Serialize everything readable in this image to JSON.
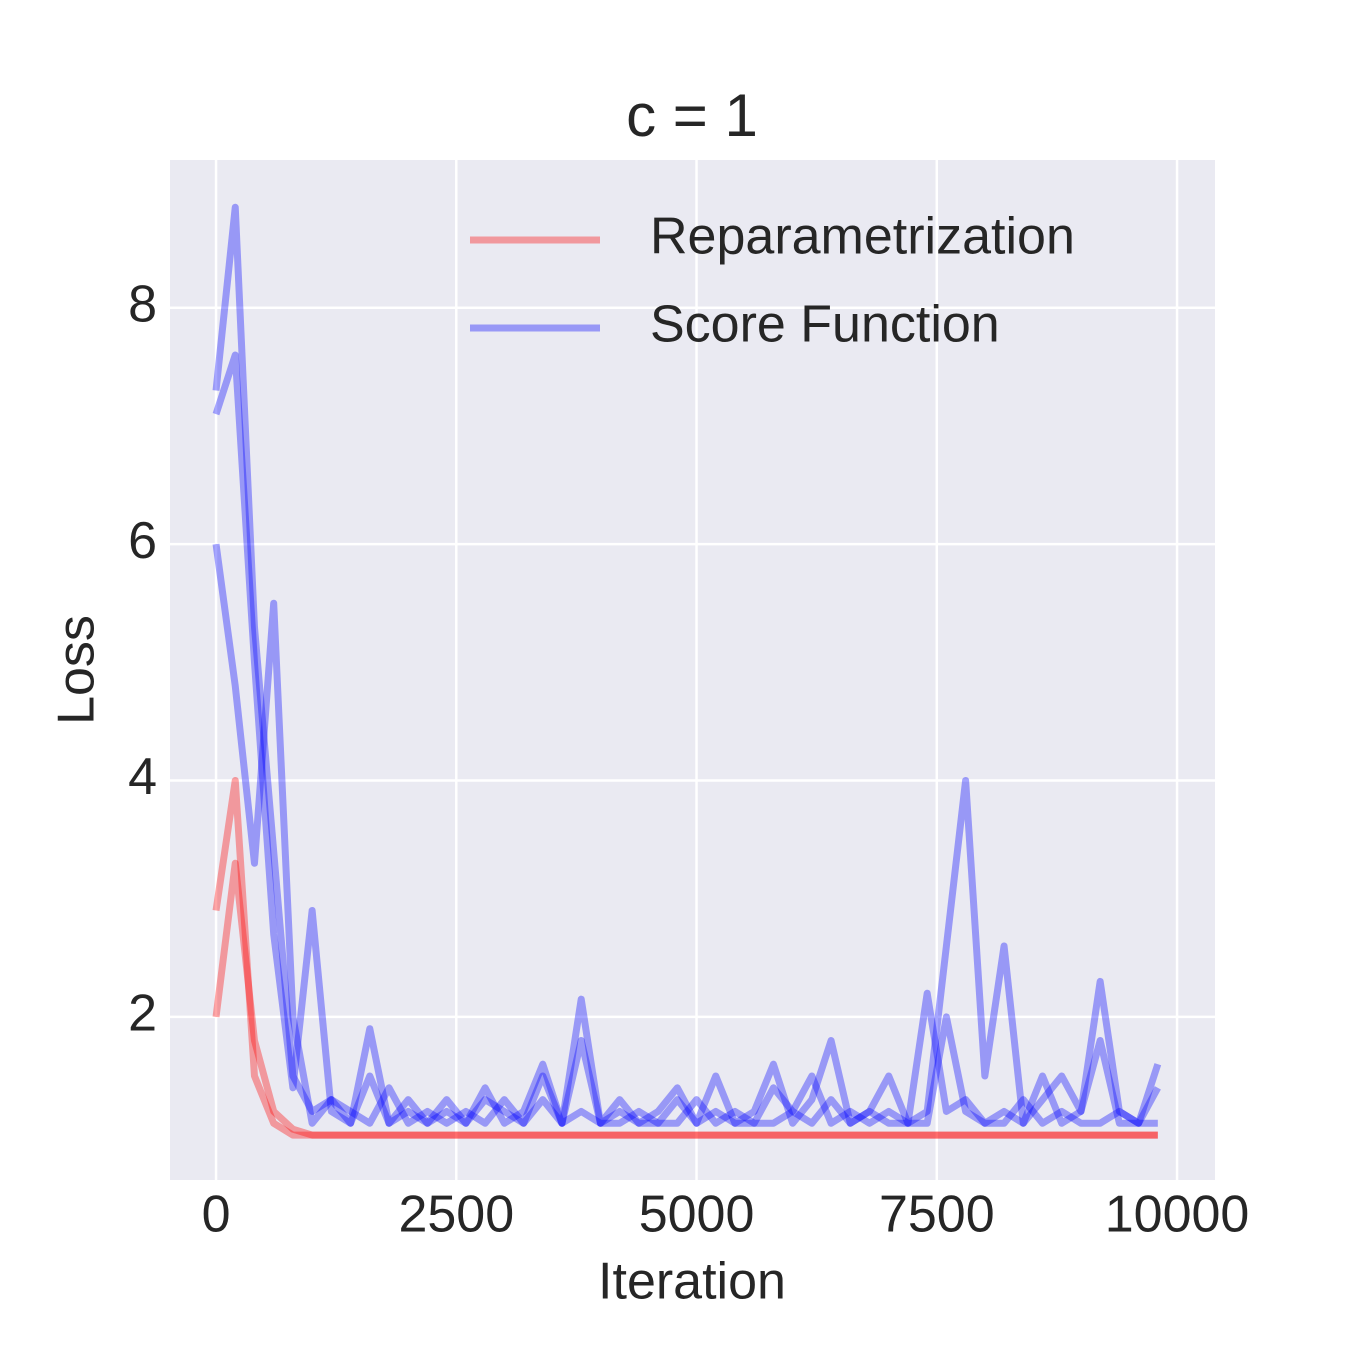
{
  "chart_data": {
    "type": "line",
    "title": "c = 1",
    "xlabel": "Iteration",
    "ylabel": "Loss",
    "x": [
      0,
      200,
      400,
      600,
      800,
      1000,
      1200,
      1400,
      1600,
      1800,
      2000,
      2200,
      2400,
      2600,
      2800,
      3000,
      3200,
      3400,
      3600,
      3800,
      4000,
      4200,
      4400,
      4600,
      4800,
      5000,
      5200,
      5400,
      5600,
      5800,
      6000,
      6200,
      6400,
      6600,
      6800,
      7000,
      7200,
      7400,
      7600,
      7800,
      8000,
      8200,
      8400,
      8600,
      8800,
      9000,
      9200,
      9400,
      9600,
      9800
    ],
    "series": [
      {
        "name": "Reparametrization",
        "color": "#ff0000",
        "runs": [
          [
            2.9,
            4.0,
            1.5,
            1.1,
            1,
            1,
            1,
            1,
            1,
            1,
            1,
            1,
            1,
            1,
            1,
            1,
            1,
            1,
            1,
            1,
            1,
            1,
            1,
            1,
            1,
            1,
            1,
            1,
            1,
            1,
            1,
            1,
            1,
            1,
            1,
            1,
            1,
            1,
            1,
            1,
            1,
            1,
            1,
            1,
            1,
            1,
            1,
            1,
            1,
            1
          ],
          [
            2.0,
            3.3,
            1.8,
            1.2,
            1.05,
            1,
            1,
            1,
            1,
            1,
            1,
            1,
            1,
            1,
            1,
            1,
            1,
            1,
            1,
            1,
            1,
            1,
            1,
            1,
            1,
            1,
            1,
            1,
            1,
            1,
            1,
            1,
            1,
            1,
            1,
            1,
            1,
            1,
            1,
            1,
            1,
            1,
            1,
            1,
            1,
            1,
            1,
            1,
            1,
            1
          ]
        ]
      },
      {
        "name": "Score Function",
        "color": "#0000ff",
        "runs": [
          [
            7.3,
            8.85,
            5.3,
            3.4,
            1.5,
            1.2,
            1.3,
            1.1,
            1.9,
            1.1,
            1.2,
            1.1,
            1.3,
            1.1,
            1.4,
            1.1,
            1.2,
            1.6,
            1.1,
            2.15,
            1.1,
            1.3,
            1.1,
            1.2,
            1.4,
            1.1,
            1.5,
            1.1,
            1.2,
            1.6,
            1.1,
            1.3,
            1.8,
            1.1,
            1.2,
            1.5,
            1.1,
            1.2,
            2.6,
            4.0,
            1.5,
            2.6,
            1.1,
            1.3,
            1.5,
            1.2,
            2.3,
            1.2,
            1.1,
            1.6
          ],
          [
            7.1,
            7.6,
            5.0,
            2.7,
            1.4,
            2.9,
            1.2,
            1.1,
            1.5,
            1.1,
            1.3,
            1.1,
            1.2,
            1.1,
            1.3,
            1.2,
            1.1,
            1.3,
            1.1,
            1.8,
            1.1,
            1.2,
            1.1,
            1.1,
            1.3,
            1.1,
            1.2,
            1.1,
            1.1,
            1.4,
            1.2,
            1.1,
            1.3,
            1.1,
            1.2,
            1.1,
            1.1,
            2.2,
            1.2,
            1.3,
            1.1,
            1.2,
            1.1,
            1.5,
            1.1,
            1.2,
            1.8,
            1.1,
            1.1,
            1.4
          ],
          [
            6.0,
            4.8,
            3.3,
            5.5,
            2.0,
            1.1,
            1.3,
            1.2,
            1.1,
            1.4,
            1.1,
            1.2,
            1.1,
            1.2,
            1.1,
            1.3,
            1.1,
            1.5,
            1.1,
            1.2,
            1.1,
            1.1,
            1.2,
            1.1,
            1.1,
            1.3,
            1.1,
            1.2,
            1.1,
            1.1,
            1.2,
            1.5,
            1.1,
            1.2,
            1.1,
            1.2,
            1.1,
            1.1,
            2.0,
            1.2,
            1.1,
            1.1,
            1.3,
            1.1,
            1.2,
            1.1,
            1.1,
            1.2,
            1.1,
            1.1
          ]
        ]
      }
    ],
    "xlim": [
      -479,
      10395
    ],
    "ylim": [
      0.62,
      9.25
    ],
    "xticks": [
      0,
      2500,
      5000,
      7500,
      10000
    ],
    "yticks": [
      2,
      4,
      6,
      8
    ],
    "grid": true,
    "legend": "upper right",
    "alpha": 0.35
  }
}
